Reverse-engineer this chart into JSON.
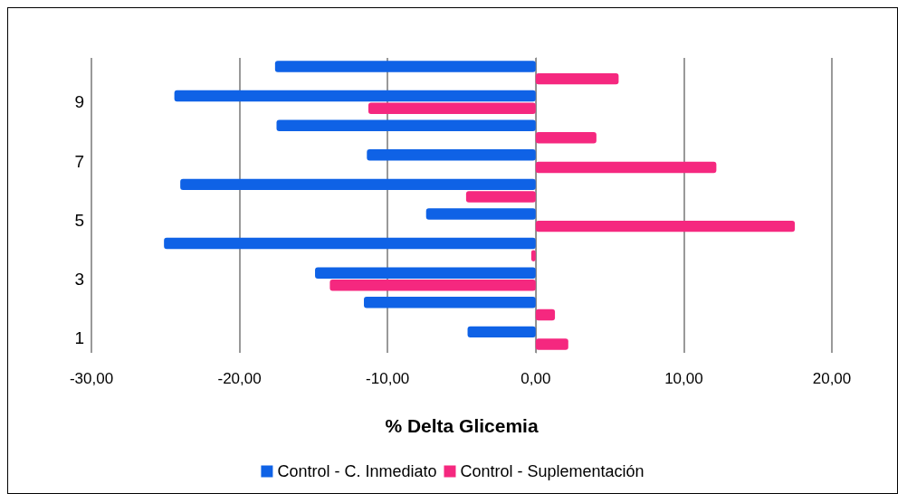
{
  "chart_data": {
    "type": "bar",
    "orientation": "horizontal",
    "xlabel": "% Delta Glicemia",
    "categories": [
      null,
      "9",
      null,
      "7",
      null,
      "5",
      null,
      "3",
      null,
      "1"
    ],
    "series": [
      {
        "name": "Control - C. Inmediato",
        "color": "#0f62e6",
        "values": [
          -17.6,
          -24.4,
          -17.5,
          -11.4,
          -24.0,
          -7.4,
          -25.1,
          -14.9,
          -11.6,
          -4.6
        ]
      },
      {
        "name": "Control - Suplementación",
        "color": "#f5287f",
        "values": [
          5.6,
          -11.3,
          4.1,
          12.2,
          -4.7,
          17.5,
          -0.3,
          -13.9,
          1.3,
          2.2
        ]
      }
    ],
    "xlim": [
      -30,
      20
    ],
    "xticks": [
      {
        "value": -30,
        "label": "-30,00"
      },
      {
        "value": -20,
        "label": "-20,00"
      },
      {
        "value": -10,
        "label": "-10,00"
      },
      {
        "value": 0,
        "label": "0,00"
      },
      {
        "value": 10,
        "label": "10,00"
      },
      {
        "value": 20,
        "label": "20,00"
      }
    ],
    "grid": "x",
    "legend": "bottom"
  }
}
